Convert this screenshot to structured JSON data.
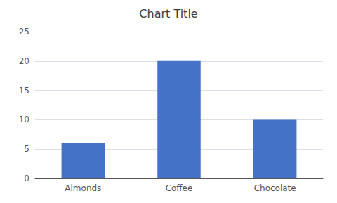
{
  "chart_data": {
    "type": "bar",
    "title": "Chart Title",
    "categories": [
      "Almonds",
      "Coffee",
      "Chocolate"
    ],
    "values": [
      6,
      20,
      10
    ],
    "color": "#4472C4",
    "ylim": [
      0,
      25
    ],
    "yticks": [
      0,
      5,
      10,
      15,
      20,
      25
    ],
    "grid": true
  }
}
